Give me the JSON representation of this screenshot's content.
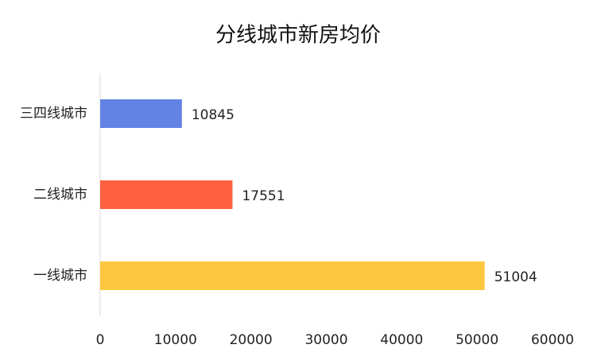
{
  "chart_data": {
    "type": "hbar",
    "title": "分线城市新房均价",
    "categories": [
      "三四线城市",
      "二线城市",
      "一线城市"
    ],
    "values": [
      10845,
      17551,
      51004
    ],
    "colors": [
      "#6283e4",
      "#fe6040",
      "#fdc840"
    ],
    "xlim": [
      0,
      60000
    ],
    "xticks": [
      0,
      10000,
      20000,
      30000,
      40000,
      50000,
      60000
    ],
    "grid": false
  }
}
